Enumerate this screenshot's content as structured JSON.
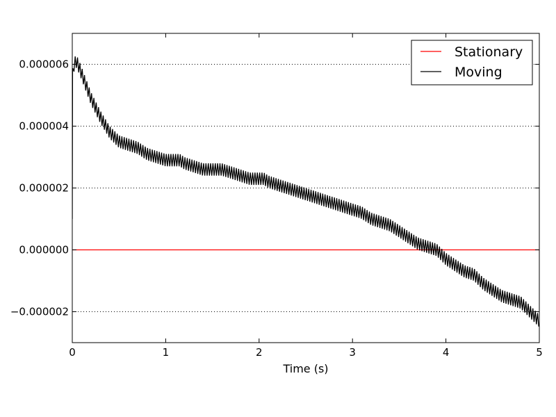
{
  "chart_data": {
    "type": "line",
    "title": "",
    "xlabel": "Time (s)",
    "ylabel": "",
    "xlim": [
      0,
      5
    ],
    "ylim": [
      -3e-06,
      7e-06
    ],
    "grid": {
      "y": true,
      "x": false,
      "style": "dotted"
    },
    "legend_position": "top-right",
    "x_ticks": [
      0,
      1,
      2,
      3,
      4,
      5
    ],
    "x_tick_labels": [
      "0",
      "1",
      "2",
      "3",
      "4",
      "5"
    ],
    "y_ticks": [
      -2e-06,
      0,
      2e-06,
      4e-06,
      6e-06
    ],
    "y_tick_labels": [
      "−0.000002",
      "0.000000",
      "0.000002",
      "0.000004",
      "0.000006"
    ],
    "series": [
      {
        "name": "Stationary",
        "color": "#ff0000",
        "x": [
          0,
          5
        ],
        "y": [
          0,
          0
        ]
      },
      {
        "name": "Moving",
        "color": "#000000",
        "oscillation": {
          "period": 0.025,
          "amplitude_low": 4e-07
        },
        "x": [
          0,
          0.003,
          0.02,
          0.04,
          0.06,
          0.1,
          0.15,
          0.2,
          0.3,
          0.4,
          0.5,
          0.6,
          0.7,
          0.8,
          0.9,
          1.0,
          1.1,
          1.15,
          1.2,
          1.3,
          1.4,
          1.5,
          1.6,
          1.7,
          1.8,
          1.9,
          2.0,
          2.05,
          2.1,
          2.2,
          2.3,
          2.4,
          2.5,
          2.6,
          2.7,
          2.8,
          2.9,
          3.0,
          3.1,
          3.2,
          3.3,
          3.4,
          3.5,
          3.6,
          3.7,
          3.8,
          3.9,
          4.0,
          4.1,
          4.2,
          4.3,
          4.4,
          4.5,
          4.6,
          4.7,
          4.8,
          4.9,
          5.0
        ],
        "y": [
          1e-06,
          5.8e-06,
          6.2e-06,
          6.3e-06,
          6.2e-06,
          5.9e-06,
          5.5e-06,
          5.1e-06,
          4.5e-06,
          4e-06,
          3.7e-06,
          3.6e-06,
          3.5e-06,
          3.3e-06,
          3.2e-06,
          3.1e-06,
          3.1e-06,
          3.1e-06,
          3e-06,
          2.9e-06,
          2.8e-06,
          2.8e-06,
          2.8e-06,
          2.7e-06,
          2.6e-06,
          2.5e-06,
          2.5e-06,
          2.5e-06,
          2.4e-06,
          2.3e-06,
          2.2e-06,
          2.1e-06,
          2e-06,
          1.9e-06,
          1.8e-06,
          1.7e-06,
          1.6e-06,
          1.5e-06,
          1.4e-06,
          1.2e-06,
          1.1e-06,
          1e-06,
          8e-07,
          6e-07,
          4e-07,
          3e-07,
          2e-07,
          -1e-07,
          -3e-07,
          -5e-07,
          -6e-07,
          -9e-07,
          -1.1e-06,
          -1.3e-06,
          -1.4e-06,
          -1.5e-06,
          -1.8e-06,
          -2.1e-06
        ]
      }
    ]
  }
}
